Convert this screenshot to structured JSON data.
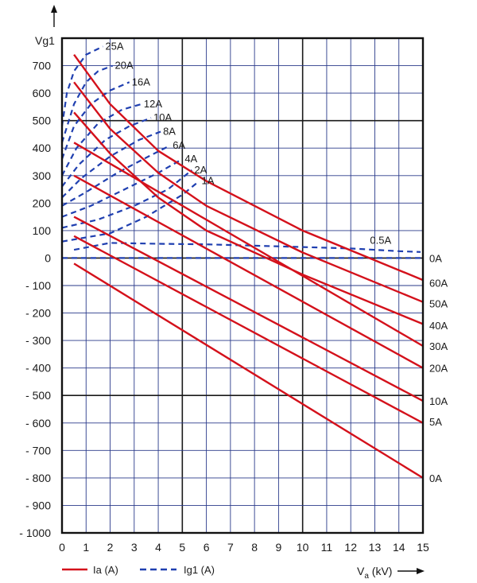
{
  "chart_data": {
    "type": "line",
    "ylabel": "Vg1",
    "xlabel": "Va (kV)",
    "xlim": [
      0,
      15
    ],
    "ylim": [
      -1000,
      800
    ],
    "grid": true,
    "legend_position": "bottom-left",
    "x_ticks": [
      "0",
      "1",
      "2",
      "3",
      "4",
      "5",
      "6",
      "7",
      "8",
      "9",
      "10",
      "11",
      "12",
      "13",
      "14",
      "15"
    ],
    "y_ticks": [
      "- 1000",
      "- 900",
      "- 800",
      "- 700",
      "- 600",
      "- 500",
      "- 400",
      "- 300",
      "- 200",
      "- 100",
      "0",
      "100",
      "200",
      "300",
      "400",
      "500",
      "600",
      "700"
    ],
    "y_tick_values": [
      -1000,
      -900,
      -800,
      -700,
      -600,
      -500,
      -400,
      -300,
      -200,
      -100,
      0,
      100,
      200,
      300,
      400,
      500,
      600,
      700
    ],
    "legend": [
      {
        "label": "Ia (A)",
        "color": "#d4111b",
        "dash": "solid"
      },
      {
        "label": "Ig1 (A)",
        "color": "#1f3fb0",
        "dash": "dashed"
      }
    ],
    "series_ia": [
      {
        "label": "0A",
        "points": [
          [
            0.5,
            -20
          ],
          [
            15,
            -800
          ]
        ]
      },
      {
        "label": "5A",
        "points": [
          [
            0.5,
            80
          ],
          [
            15,
            -600
          ]
        ]
      },
      {
        "label": "10A",
        "points": [
          [
            0.5,
            150
          ],
          [
            15,
            -520
          ]
        ]
      },
      {
        "label": "20A",
        "points": [
          [
            0.5,
            300
          ],
          [
            15,
            -400
          ]
        ]
      },
      {
        "label": "30A",
        "points": [
          [
            0.5,
            420
          ],
          [
            15,
            -320
          ]
        ]
      },
      {
        "label": "40A",
        "points": [
          [
            0.5,
            530
          ],
          [
            2,
            380
          ],
          [
            4,
            220
          ],
          [
            6,
            100
          ],
          [
            10,
            -60
          ],
          [
            15,
            -240
          ]
        ]
      },
      {
        "label": "50A",
        "points": [
          [
            0.5,
            640
          ],
          [
            2,
            470
          ],
          [
            4,
            310
          ],
          [
            6,
            190
          ],
          [
            10,
            20
          ],
          [
            15,
            -160
          ]
        ]
      },
      {
        "label": "60A",
        "points": [
          [
            0.5,
            740
          ],
          [
            2,
            560
          ],
          [
            4,
            390
          ],
          [
            6,
            280
          ],
          [
            10,
            100
          ],
          [
            15,
            -80
          ]
        ]
      }
    ],
    "series_ig1": [
      {
        "label": "25A",
        "points": [
          [
            0,
            480
          ],
          [
            0.2,
            600
          ],
          [
            0.5,
            680
          ],
          [
            1,
            740
          ],
          [
            1.7,
            770
          ]
        ]
      },
      {
        "label": "20A",
        "points": [
          [
            0,
            420
          ],
          [
            0.5,
            560
          ],
          [
            1,
            640
          ],
          [
            1.5,
            680
          ],
          [
            2.1,
            700
          ]
        ]
      },
      {
        "label": "16A",
        "points": [
          [
            0,
            360
          ],
          [
            0.5,
            480
          ],
          [
            1.2,
            560
          ],
          [
            2,
            610
          ],
          [
            2.8,
            640
          ]
        ]
      },
      {
        "label": "12A",
        "points": [
          [
            0,
            300
          ],
          [
            0.6,
            400
          ],
          [
            1.5,
            490
          ],
          [
            2.5,
            540
          ],
          [
            3.3,
            560
          ]
        ]
      },
      {
        "label": "10A",
        "points": [
          [
            0,
            260
          ],
          [
            0.7,
            340
          ],
          [
            1.8,
            430
          ],
          [
            2.8,
            480
          ],
          [
            3.7,
            510
          ]
        ]
      },
      {
        "label": "8A",
        "points": [
          [
            0,
            220
          ],
          [
            0.8,
            290
          ],
          [
            2,
            370
          ],
          [
            3.2,
            430
          ],
          [
            4.1,
            460
          ]
        ]
      },
      {
        "label": "6A",
        "points": [
          [
            0,
            190
          ],
          [
            1,
            240
          ],
          [
            2.3,
            310
          ],
          [
            3.6,
            370
          ],
          [
            4.5,
            410
          ]
        ]
      },
      {
        "label": "4A",
        "points": [
          [
            0,
            150
          ],
          [
            1.2,
            190
          ],
          [
            2.6,
            250
          ],
          [
            4,
            310
          ],
          [
            5,
            360
          ]
        ]
      },
      {
        "label": "2A",
        "points": [
          [
            0,
            110
          ],
          [
            1.5,
            140
          ],
          [
            3,
            190
          ],
          [
            4.4,
            250
          ],
          [
            5.4,
            320
          ]
        ]
      },
      {
        "label": "1A",
        "points": [
          [
            0,
            60
          ],
          [
            2,
            90
          ],
          [
            3.5,
            150
          ],
          [
            5,
            230
          ],
          [
            5.7,
            280
          ]
        ]
      },
      {
        "label": "0.5A",
        "points": [
          [
            0.5,
            30
          ],
          [
            2,
            55
          ],
          [
            4,
            52
          ],
          [
            6,
            50
          ],
          [
            8,
            45
          ],
          [
            10,
            40
          ],
          [
            12,
            35
          ],
          [
            14,
            25
          ],
          [
            14.9,
            22
          ]
        ]
      },
      {
        "label": "0A",
        "points": [
          [
            0,
            0
          ],
          [
            15,
            0
          ]
        ]
      }
    ],
    "right_labels": [
      {
        "text": "0A",
        "y": 0
      },
      {
        "text": "60A",
        "y": -90
      },
      {
        "text": "50A",
        "y": -165
      },
      {
        "text": "40A",
        "y": -245
      },
      {
        "text": "30A",
        "y": -320
      },
      {
        "text": "20A",
        "y": -400
      },
      {
        "text": "10A",
        "y": -520
      },
      {
        "text": "5A",
        "y": -595
      },
      {
        "text": "0A",
        "y": -800
      }
    ]
  }
}
